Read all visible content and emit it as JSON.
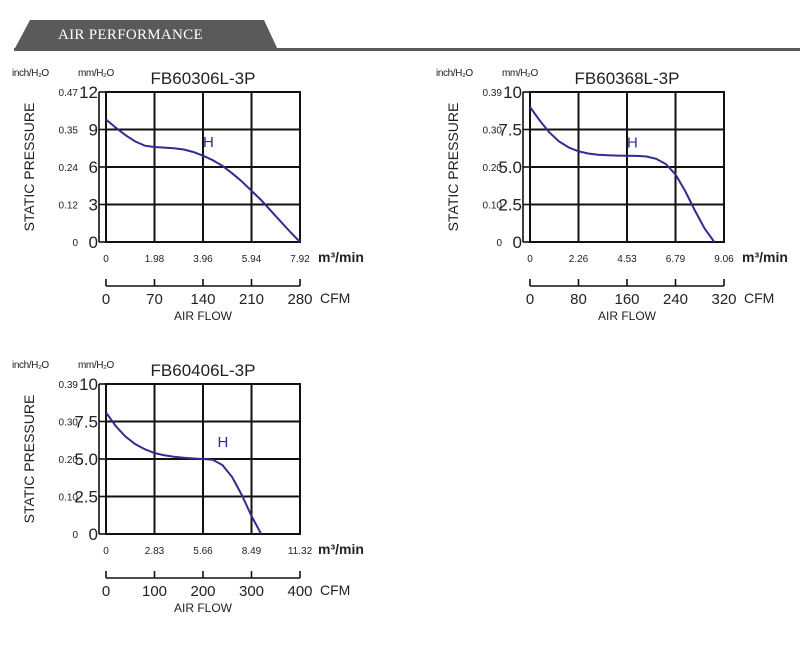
{
  "header": {
    "title": "AIR PERFORMANCE",
    "color": "#5a5a5a"
  },
  "chart_data": [
    {
      "type": "line",
      "title": "FB60306L-3P",
      "ylabel": "STATIC PRESSURE",
      "y_units": [
        "inch/H₂O",
        "mm/H₂O"
      ],
      "y_ticks_mm": [
        "0",
        "3",
        "6",
        "9",
        "12"
      ],
      "y_ticks_inch": [
        "0",
        "0.12",
        "0.24",
        "0.35",
        "0.47"
      ],
      "ylim": [
        0,
        12
      ],
      "x_ticks_m3": [
        "0",
        "1.98",
        "3.96",
        "5.94",
        "7.92"
      ],
      "x_unit_m3": "m³/min",
      "x_ticks_cfm": [
        "0",
        "70",
        "140",
        "210",
        "280"
      ],
      "x_unit_cfm": "CFM",
      "xlabel": "AIR FLOW",
      "xlim_cfm": [
        0,
        280
      ],
      "series": [
        {
          "name": "H",
          "color": "#2f2d8f",
          "x": [
            0,
            14,
            28,
            42,
            56,
            70,
            84,
            98,
            112,
            126,
            140,
            154,
            168,
            182,
            196,
            210,
            224,
            238,
            252,
            266,
            280
          ],
          "y": [
            9.8,
            9.15,
            8.55,
            8.05,
            7.7,
            7.6,
            7.55,
            7.5,
            7.4,
            7.2,
            6.9,
            6.55,
            6.1,
            5.5,
            4.85,
            4.1,
            3.35,
            2.5,
            1.65,
            0.8,
            0
          ]
        }
      ],
      "curve_label_at": [
        140,
        7.6
      ]
    },
    {
      "type": "line",
      "title": "FB60368L-3P",
      "ylabel": "STATIC PRESSURE",
      "y_units": [
        "inch/H₂O",
        "mm/H₂O"
      ],
      "y_ticks_mm": [
        "0",
        "2.5",
        "5.0",
        "7.5",
        "10"
      ],
      "y_ticks_inch": [
        "0",
        "0.10",
        "0.20",
        "0.30",
        "0.39"
      ],
      "ylim": [
        0,
        10
      ],
      "x_ticks_m3": [
        "0",
        "2.26",
        "4.53",
        "6.79",
        "9.06"
      ],
      "x_unit_m3": "m³/min",
      "x_ticks_cfm": [
        "0",
        "80",
        "160",
        "240",
        "320"
      ],
      "x_unit_cfm": "CFM",
      "xlabel": "AIR FLOW",
      "xlim_cfm": [
        0,
        320
      ],
      "series": [
        {
          "name": "H",
          "color": "#2f2d8f",
          "x": [
            0,
            16,
            32,
            48,
            64,
            80,
            96,
            112,
            128,
            144,
            160,
            176,
            192,
            208,
            224,
            240,
            256,
            272,
            288,
            304
          ],
          "y": [
            9.0,
            8.1,
            7.3,
            6.7,
            6.3,
            6.05,
            5.9,
            5.82,
            5.78,
            5.76,
            5.75,
            5.74,
            5.7,
            5.55,
            5.2,
            4.5,
            3.4,
            2.1,
            0.9,
            0
          ]
        }
      ],
      "curve_label_at": [
        160,
        6.3
      ]
    },
    {
      "type": "line",
      "title": "FB60406L-3P",
      "ylabel": "STATIC PRESSURE",
      "y_units": [
        "inch/H₂O",
        "mm/H₂O"
      ],
      "y_ticks_mm": [
        "0",
        "2.5",
        "5.0",
        "7.5",
        "10"
      ],
      "y_ticks_inch": [
        "0",
        "0.10",
        "0.20",
        "0.30",
        "0.39"
      ],
      "ylim": [
        0,
        10
      ],
      "x_ticks_m3": [
        "0",
        "2.83",
        "5.66",
        "8.49",
        "11.32"
      ],
      "x_unit_m3": "m³/min",
      "x_ticks_cfm": [
        "0",
        "100",
        "200",
        "300",
        "400"
      ],
      "x_unit_cfm": "CFM",
      "xlabel": "AIR FLOW",
      "xlim_cfm": [
        0,
        400
      ],
      "series": [
        {
          "name": "H",
          "color": "#2f2d8f",
          "x": [
            0,
            20,
            40,
            60,
            80,
            100,
            120,
            140,
            160,
            180,
            200,
            220,
            240,
            260,
            280,
            300,
            320
          ],
          "y": [
            8.1,
            7.2,
            6.5,
            6.0,
            5.65,
            5.4,
            5.25,
            5.15,
            5.08,
            5.03,
            5.0,
            4.95,
            4.6,
            3.8,
            2.6,
            1.2,
            0
          ]
        }
      ],
      "curve_label_at": [
        230,
        5.8
      ]
    }
  ]
}
